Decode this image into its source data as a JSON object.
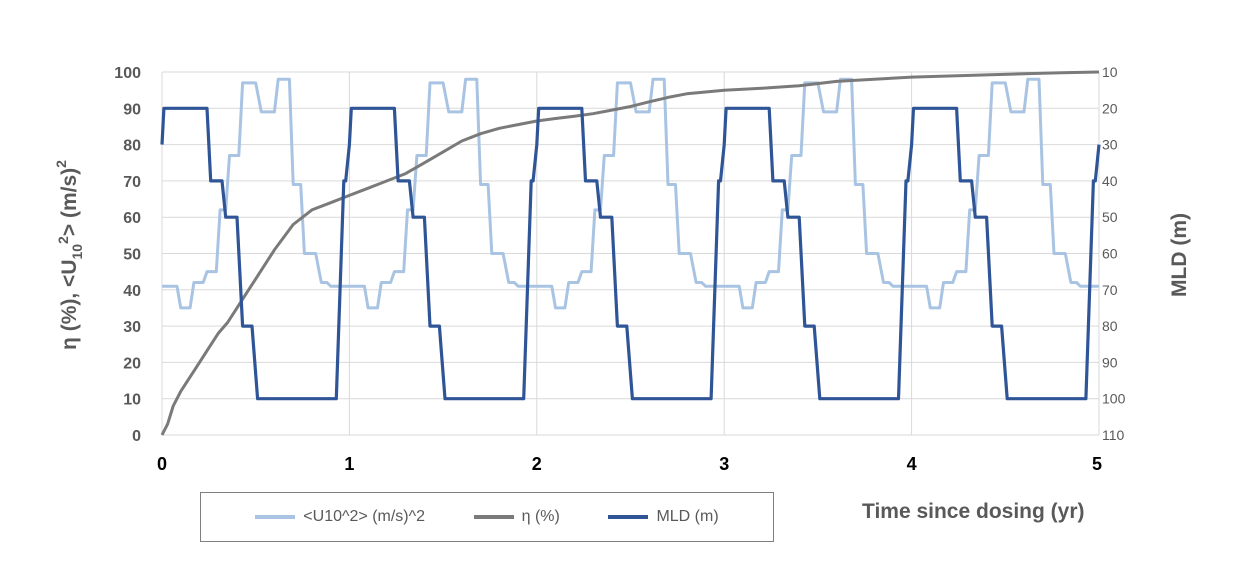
{
  "chart_data": {
    "type": "line",
    "xlabel": "Time since dosing (yr)",
    "ylabel_left_parts": [
      "η (%), <U",
      "10",
      "2",
      "> (m/s)",
      "2"
    ],
    "ylabel_right": "MLD (m)",
    "xlim": [
      0,
      5
    ],
    "ylim_left": [
      0,
      100
    ],
    "ylim_right": [
      110,
      10
    ],
    "x_ticks": [
      "0",
      "1",
      "2",
      "3",
      "4",
      "5"
    ],
    "y_left_ticks": [
      "0",
      "10",
      "20",
      "30",
      "40",
      "50",
      "60",
      "70",
      "80",
      "90",
      "100"
    ],
    "y_right_ticks": [
      "10",
      "20",
      "30",
      "40",
      "50",
      "60",
      "70",
      "80",
      "90",
      "100",
      "110"
    ],
    "grid": true,
    "legend_position": "bottom-left",
    "series": [
      {
        "name": "<U10^2> (m/s)^2",
        "axis": "left",
        "color": "#a9c4e3",
        "cycle": {
          "period": 1,
          "x": [
            0,
            0.08,
            0.1,
            0.15,
            0.17,
            0.22,
            0.24,
            0.29,
            0.31,
            0.34,
            0.36,
            0.41,
            0.43,
            0.5,
            0.53,
            0.6,
            0.62,
            0.68,
            0.7,
            0.74,
            0.76,
            0.82,
            0.85,
            0.88,
            0.9,
            0.97,
            1.0
          ],
          "y": [
            41,
            41,
            35,
            35,
            42,
            42,
            45,
            45,
            62,
            62,
            77,
            77,
            97,
            97,
            89,
            89,
            98,
            98,
            69,
            69,
            50,
            50,
            42,
            42,
            41,
            41,
            41
          ]
        }
      },
      {
        "name": "η (%)",
        "axis": "left",
        "color": "#7a7a7a",
        "x": [
          0,
          0.03,
          0.06,
          0.1,
          0.15,
          0.2,
          0.25,
          0.3,
          0.35,
          0.4,
          0.45,
          0.5,
          0.6,
          0.7,
          0.8,
          0.9,
          1.0,
          1.1,
          1.2,
          1.3,
          1.4,
          1.5,
          1.6,
          1.7,
          1.8,
          1.9,
          2.0,
          2.1,
          2.2,
          2.3,
          2.4,
          2.5,
          2.6,
          2.7,
          2.8,
          2.9,
          3.0,
          3.2,
          3.4,
          3.6,
          3.8,
          4.0,
          4.2,
          4.4,
          4.6,
          4.8,
          5.0
        ],
        "y": [
          0,
          3,
          8,
          12,
          16,
          20,
          24,
          28,
          31,
          35,
          39,
          43,
          51,
          58,
          62,
          64,
          66,
          68,
          70,
          72,
          75,
          78,
          81,
          83,
          84.5,
          85.5,
          86.5,
          87.2,
          87.8,
          88.5,
          89.5,
          90.5,
          91.8,
          93,
          94,
          94.5,
          95,
          95.5,
          96.2,
          97.4,
          98,
          98.6,
          98.9,
          99.2,
          99.5,
          99.8,
          100
        ]
      },
      {
        "name": "MLD (m)",
        "axis": "right",
        "color": "#2f5597",
        "cycle": {
          "period": 1,
          "x": [
            0,
            0.01,
            0.24,
            0.26,
            0.32,
            0.34,
            0.4,
            0.43,
            0.48,
            0.51,
            0.93,
            0.97,
            0.98,
            1.0
          ],
          "y": [
            30,
            20,
            20,
            40,
            40,
            50,
            50,
            80,
            80,
            100,
            100,
            40,
            40,
            30
          ]
        }
      }
    ]
  },
  "legend": {
    "items": [
      {
        "label": "<U10^2> (m/s)^2",
        "color": "#a9c4e3"
      },
      {
        "label": "η (%)",
        "color": "#7a7a7a"
      },
      {
        "label": "MLD (m)",
        "color": "#2f5597"
      }
    ]
  },
  "colors": {
    "grid": "#d9d9d9",
    "text": "#595959"
  }
}
